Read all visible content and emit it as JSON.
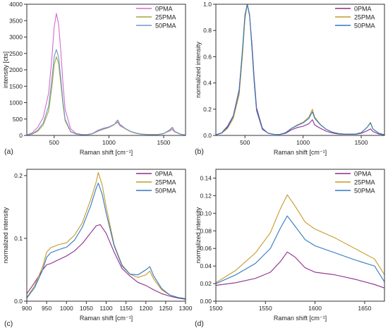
{
  "chart_data": [
    {
      "type": "line",
      "panel_label": "(a)",
      "xlabel": "Raman shift [cm⁻¹]",
      "ylabel": "intensity [cts]",
      "xlim": [
        250,
        1700
      ],
      "ylim": [
        0,
        4000
      ],
      "xticks": [
        500,
        1000,
        1500
      ],
      "xtick_labels": [
        "500",
        "1000",
        "1500"
      ],
      "yticks": [
        0,
        500,
        1000,
        1500,
        2000,
        2500,
        3000,
        3500,
        4000
      ],
      "ytick_labels": [
        "0",
        "500",
        "1000",
        "1500",
        "2000",
        "2500",
        "3000",
        "3500",
        "4000"
      ],
      "grid": false,
      "legend": "top-right",
      "series": [
        {
          "name": "0PMA",
          "color": "#d46ad0",
          "x": [
            250,
            300,
            350,
            400,
            450,
            480,
            500,
            520,
            540,
            560,
            580,
            600,
            650,
            700,
            750,
            800,
            850,
            900,
            950,
            1000,
            1050,
            1080,
            1100,
            1150,
            1200,
            1250,
            1300,
            1350,
            1400,
            1450,
            1500,
            1550,
            1580,
            1600,
            1650,
            1700
          ],
          "y": [
            15,
            80,
            250,
            550,
            1300,
            2400,
            3300,
            3720,
            3400,
            2600,
            1600,
            800,
            200,
            60,
            30,
            25,
            60,
            160,
            220,
            260,
            340,
            400,
            300,
            200,
            120,
            70,
            40,
            30,
            30,
            30,
            60,
            130,
            180,
            110,
            40,
            10
          ]
        },
        {
          "name": "25PMA",
          "color": "#a7a33a",
          "x": [
            250,
            300,
            350,
            400,
            450,
            480,
            500,
            520,
            540,
            560,
            580,
            600,
            650,
            700,
            750,
            800,
            850,
            900,
            950,
            1000,
            1050,
            1080,
            1100,
            1150,
            1200,
            1250,
            1300,
            1350,
            1400,
            1450,
            1500,
            1550,
            1580,
            1600,
            1650,
            1700
          ],
          "y": [
            10,
            40,
            130,
            320,
            750,
            1500,
            2150,
            2400,
            2200,
            1600,
            950,
            450,
            110,
            40,
            20,
            20,
            50,
            130,
            190,
            240,
            330,
            450,
            330,
            200,
            110,
            60,
            35,
            25,
            25,
            25,
            50,
            150,
            230,
            120,
            40,
            10
          ]
        },
        {
          "name": "50PMA",
          "color": "#6b9bc4",
          "x": [
            250,
            300,
            350,
            400,
            450,
            480,
            500,
            520,
            540,
            560,
            580,
            600,
            650,
            700,
            750,
            800,
            850,
            900,
            950,
            1000,
            1050,
            1080,
            1100,
            1150,
            1200,
            1250,
            1300,
            1350,
            1400,
            1450,
            1500,
            1550,
            1580,
            1600,
            1650,
            1700
          ],
          "y": [
            10,
            50,
            160,
            380,
            900,
            1750,
            2400,
            2620,
            2400,
            1750,
            1050,
            500,
            120,
            45,
            22,
            22,
            55,
            140,
            200,
            250,
            340,
            470,
            340,
            210,
            120,
            65,
            38,
            28,
            28,
            28,
            55,
            160,
            250,
            130,
            45,
            12
          ]
        }
      ]
    },
    {
      "type": "line",
      "panel_label": "(b)",
      "xlabel": "Raman shift [cm⁻¹]",
      "ylabel": "normalized intensity",
      "xlim": [
        250,
        1700
      ],
      "ylim": [
        0,
        1.0
      ],
      "xticks": [
        500,
        1000,
        1500
      ],
      "xtick_labels": [
        "500",
        "1000",
        "1500"
      ],
      "yticks": [
        0,
        0.2,
        0.4,
        0.6,
        0.8,
        1.0
      ],
      "ytick_labels": [
        "0.0",
        "0.2",
        "0.4",
        "0.6",
        "0.8",
        "1.0"
      ],
      "grid": false,
      "legend": "top-right",
      "series": [
        {
          "name": "0PMA",
          "color": "#8e2c8f",
          "x": [
            250,
            300,
            350,
            400,
            450,
            480,
            500,
            520,
            540,
            560,
            580,
            600,
            650,
            700,
            750,
            800,
            850,
            900,
            950,
            1000,
            1050,
            1080,
            1100,
            1150,
            1200,
            1250,
            1300,
            1350,
            1400,
            1450,
            1500,
            1550,
            1580,
            1600,
            1650,
            1700
          ],
          "y": [
            0.005,
            0.02,
            0.07,
            0.15,
            0.35,
            0.65,
            0.89,
            1.0,
            0.91,
            0.7,
            0.43,
            0.21,
            0.055,
            0.016,
            0.008,
            0.007,
            0.016,
            0.043,
            0.06,
            0.07,
            0.09,
            0.12,
            0.08,
            0.054,
            0.032,
            0.019,
            0.011,
            0.008,
            0.008,
            0.008,
            0.016,
            0.035,
            0.05,
            0.03,
            0.011,
            0.003
          ]
        },
        {
          "name": "25PMA",
          "color": "#c69a2a",
          "x": [
            250,
            300,
            350,
            400,
            450,
            480,
            500,
            520,
            540,
            560,
            580,
            600,
            650,
            700,
            750,
            800,
            850,
            900,
            950,
            1000,
            1050,
            1080,
            1100,
            1150,
            1200,
            1250,
            1300,
            1350,
            1400,
            1450,
            1500,
            1550,
            1580,
            1600,
            1650,
            1700
          ],
          "y": [
            0.004,
            0.017,
            0.054,
            0.13,
            0.31,
            0.62,
            0.89,
            1.0,
            0.92,
            0.67,
            0.4,
            0.19,
            0.046,
            0.017,
            0.008,
            0.008,
            0.021,
            0.054,
            0.08,
            0.1,
            0.14,
            0.2,
            0.14,
            0.083,
            0.046,
            0.025,
            0.015,
            0.01,
            0.01,
            0.01,
            0.021,
            0.062,
            0.1,
            0.05,
            0.017,
            0.004
          ]
        },
        {
          "name": "50PMA",
          "color": "#2f78c4",
          "x": [
            250,
            300,
            350,
            400,
            450,
            480,
            500,
            520,
            540,
            560,
            580,
            600,
            650,
            700,
            750,
            800,
            850,
            900,
            950,
            1000,
            1050,
            1080,
            1100,
            1150,
            1200,
            1250,
            1300,
            1350,
            1400,
            1450,
            1500,
            1550,
            1580,
            1600,
            1650,
            1700
          ],
          "y": [
            0.004,
            0.019,
            0.061,
            0.145,
            0.34,
            0.67,
            0.92,
            1.0,
            0.92,
            0.67,
            0.4,
            0.19,
            0.046,
            0.017,
            0.008,
            0.008,
            0.021,
            0.053,
            0.076,
            0.095,
            0.13,
            0.18,
            0.13,
            0.08,
            0.046,
            0.025,
            0.015,
            0.011,
            0.011,
            0.011,
            0.021,
            0.061,
            0.095,
            0.05,
            0.017,
            0.005
          ]
        }
      ]
    },
    {
      "type": "line",
      "panel_label": "(c)",
      "xlabel": "Raman shift [cm⁻¹]",
      "ylabel": "normalized intensity",
      "xlim": [
        900,
        1300
      ],
      "ylim": [
        0,
        0.21
      ],
      "xticks": [
        900,
        950,
        1000,
        1050,
        1100,
        1150,
        1200,
        1250,
        1300
      ],
      "xtick_labels": [
        "900",
        "950",
        "1000",
        "1050",
        "1100",
        "1150",
        "1200",
        "1250",
        "1300"
      ],
      "yticks": [
        0,
        0.1,
        0.2
      ],
      "ytick_labels": [
        "0.0",
        "0.1",
        "0.2"
      ],
      "grid": false,
      "legend": "top-right",
      "series": [
        {
          "name": "0PMA",
          "color": "#8e2c8f",
          "x": [
            900,
            920,
            940,
            950,
            960,
            980,
            1000,
            1020,
            1040,
            1060,
            1075,
            1085,
            1100,
            1120,
            1140,
            1160,
            1180,
            1200,
            1220,
            1240,
            1260,
            1280,
            1300
          ],
          "y": [
            0.012,
            0.03,
            0.05,
            0.058,
            0.06,
            0.066,
            0.072,
            0.08,
            0.092,
            0.108,
            0.12,
            0.122,
            0.108,
            0.078,
            0.052,
            0.04,
            0.03,
            0.025,
            0.018,
            0.012,
            0.008,
            0.005,
            0.003
          ]
        },
        {
          "name": "25PMA",
          "color": "#c69a2a",
          "x": [
            900,
            920,
            940,
            950,
            960,
            980,
            1000,
            1020,
            1040,
            1060,
            1075,
            1080,
            1090,
            1100,
            1120,
            1140,
            1160,
            1180,
            1200,
            1210,
            1220,
            1240,
            1260,
            1280,
            1300
          ],
          "y": [
            0.006,
            0.025,
            0.055,
            0.078,
            0.085,
            0.09,
            0.093,
            0.105,
            0.125,
            0.16,
            0.19,
            0.205,
            0.185,
            0.15,
            0.09,
            0.058,
            0.043,
            0.038,
            0.042,
            0.048,
            0.035,
            0.018,
            0.01,
            0.006,
            0.004
          ]
        },
        {
          "name": "50PMA",
          "color": "#2f78c4",
          "x": [
            900,
            920,
            940,
            950,
            960,
            980,
            1000,
            1020,
            1040,
            1060,
            1075,
            1080,
            1090,
            1100,
            1120,
            1140,
            1160,
            1180,
            1200,
            1210,
            1220,
            1240,
            1260,
            1280,
            1300
          ],
          "y": [
            0.005,
            0.022,
            0.05,
            0.07,
            0.077,
            0.082,
            0.086,
            0.097,
            0.118,
            0.15,
            0.18,
            0.188,
            0.17,
            0.14,
            0.088,
            0.056,
            0.043,
            0.042,
            0.05,
            0.055,
            0.04,
            0.02,
            0.01,
            0.006,
            0.004
          ]
        }
      ]
    },
    {
      "type": "line",
      "panel_label": "(d)",
      "xlabel": "Raman shift [cm⁻¹]",
      "ylabel": "normalized intensity",
      "xlim": [
        1500,
        1670
      ],
      "ylim": [
        0,
        0.15
      ],
      "xticks": [
        1500,
        1550,
        1600,
        1650
      ],
      "xtick_labels": [
        "1500",
        "1550",
        "1600",
        "1650"
      ],
      "yticks": [
        0,
        0.02,
        0.04,
        0.06,
        0.08,
        0.1,
        0.12,
        0.14
      ],
      "ytick_labels": [
        "0.00",
        "0.02",
        "0.04",
        "0.06",
        "0.08",
        "0.10",
        "0.12",
        "0.14"
      ],
      "grid": false,
      "legend": "top-right",
      "series": [
        {
          "name": "0PMA",
          "color": "#8e2c8f",
          "x": [
            1500,
            1520,
            1540,
            1555,
            1565,
            1572,
            1580,
            1590,
            1600,
            1620,
            1640,
            1660,
            1670
          ],
          "y": [
            0.018,
            0.021,
            0.026,
            0.033,
            0.045,
            0.056,
            0.05,
            0.038,
            0.033,
            0.03,
            0.025,
            0.019,
            0.015
          ]
        },
        {
          "name": "25PMA",
          "color": "#c69a2a",
          "x": [
            1500,
            1520,
            1540,
            1555,
            1565,
            1572,
            1580,
            1590,
            1600,
            1620,
            1640,
            1660,
            1670
          ],
          "y": [
            0.021,
            0.035,
            0.055,
            0.078,
            0.105,
            0.121,
            0.108,
            0.09,
            0.082,
            0.072,
            0.06,
            0.048,
            0.03
          ]
        },
        {
          "name": "50PMA",
          "color": "#2f78c4",
          "x": [
            1500,
            1520,
            1540,
            1555,
            1565,
            1572,
            1580,
            1590,
            1600,
            1620,
            1640,
            1660,
            1670
          ],
          "y": [
            0.02,
            0.03,
            0.043,
            0.06,
            0.083,
            0.097,
            0.085,
            0.07,
            0.063,
            0.055,
            0.047,
            0.04,
            0.022
          ]
        }
      ]
    }
  ]
}
